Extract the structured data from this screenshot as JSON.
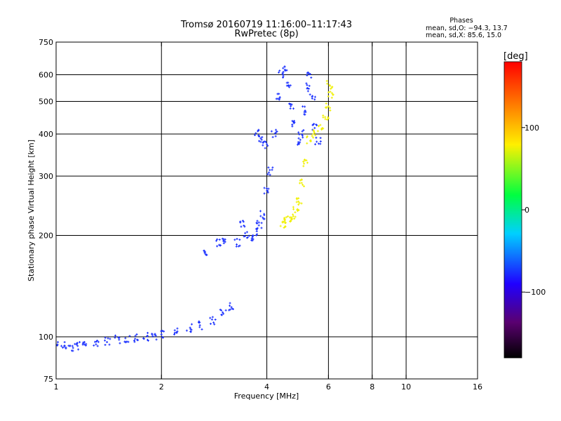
{
  "header": {
    "title_line1": "Tromsø 20160719 11:16:00–11:17:43",
    "title_line2": "RwPretec (8p)"
  },
  "stats": {
    "title": "Phases",
    "o_line": "mean, sd,O: −94.3, 13.7",
    "x_line": "mean, sd,X:  85.6, 15.0"
  },
  "colorbar": {
    "unit_label": "[deg]",
    "ticks": [
      {
        "value": 100,
        "label": "100"
      },
      {
        "value": 0,
        "label": "0"
      },
      {
        "value": -100,
        "label": "−100"
      }
    ],
    "range": [
      -180,
      180
    ],
    "colors": [
      "#000000",
      "#5a0070",
      "#2000ff",
      "#00d0ff",
      "#00ff40",
      "#fff000",
      "#ff8000",
      "#ff0000"
    ]
  },
  "chart_data": {
    "type": "scatter",
    "title": "Tromsø 20160719 11:16:00–11:17:43",
    "subtitle": "RwPretec (8p)",
    "xlabel": "Frequency [MHz]",
    "ylabel": "Stationary phase Virtual Height [km]",
    "x_scale": "log",
    "y_scale": "log",
    "xlim": [
      1,
      16
    ],
    "ylim": [
      75,
      750
    ],
    "x_ticks": [
      1,
      2,
      4,
      6,
      8,
      10,
      16
    ],
    "y_ticks": [
      75,
      100,
      200,
      300,
      400,
      500,
      600,
      750
    ],
    "x_grid": [
      2,
      4,
      6,
      8,
      10
    ],
    "y_grid": [
      100,
      200,
      300,
      400,
      500,
      600
    ],
    "grid": true,
    "color_scale": "phase [deg]",
    "series": [
      {
        "name": "O",
        "color": "#1a30ff",
        "trace_points": [
          [
            1.0,
            95
          ],
          [
            1.05,
            94
          ],
          [
            1.1,
            93
          ],
          [
            1.15,
            94
          ],
          [
            1.2,
            95
          ],
          [
            1.3,
            96
          ],
          [
            1.4,
            97
          ],
          [
            1.5,
            98
          ],
          [
            1.6,
            99
          ],
          [
            1.7,
            99
          ],
          [
            1.8,
            100
          ],
          [
            1.9,
            101
          ],
          [
            2.0,
            102
          ],
          [
            2.2,
            103
          ],
          [
            2.4,
            106
          ],
          [
            2.6,
            108
          ],
          [
            2.8,
            112
          ],
          [
            3.0,
            117
          ],
          [
            3.15,
            123
          ],
          [
            2.65,
            180
          ],
          [
            2.9,
            190
          ],
          [
            3.0,
            192
          ],
          [
            3.3,
            190
          ],
          [
            3.4,
            215
          ],
          [
            3.5,
            200
          ],
          [
            3.6,
            195
          ],
          [
            3.7,
            205
          ],
          [
            3.8,
            215
          ],
          [
            3.9,
            230
          ],
          [
            4.0,
            270
          ],
          [
            4.1,
            310
          ],
          [
            4.2,
            400
          ],
          [
            4.3,
            520
          ],
          [
            4.4,
            600
          ],
          [
            4.5,
            630
          ],
          [
            4.6,
            560
          ],
          [
            4.7,
            480
          ],
          [
            4.8,
            430
          ],
          [
            4.9,
            380
          ],
          [
            5.0,
            400
          ],
          [
            5.1,
            470
          ],
          [
            5.2,
            550
          ],
          [
            5.3,
            600
          ],
          [
            5.4,
            520
          ],
          [
            5.5,
            420
          ],
          [
            5.6,
            380
          ],
          [
            3.75,
            400
          ],
          [
            3.85,
            390
          ],
          [
            3.95,
            370
          ]
        ]
      },
      {
        "name": "X",
        "color": "#f0f000",
        "trace_points": [
          [
            4.45,
            215
          ],
          [
            4.55,
            220
          ],
          [
            4.65,
            225
          ],
          [
            4.75,
            230
          ],
          [
            4.85,
            240
          ],
          [
            4.95,
            255
          ],
          [
            5.05,
            285
          ],
          [
            5.15,
            330
          ],
          [
            5.3,
            385
          ],
          [
            5.5,
            400
          ],
          [
            5.7,
            420
          ],
          [
            5.9,
            450
          ],
          [
            6.0,
            480
          ],
          [
            6.1,
            520
          ],
          [
            6.05,
            560
          ]
        ]
      }
    ]
  }
}
